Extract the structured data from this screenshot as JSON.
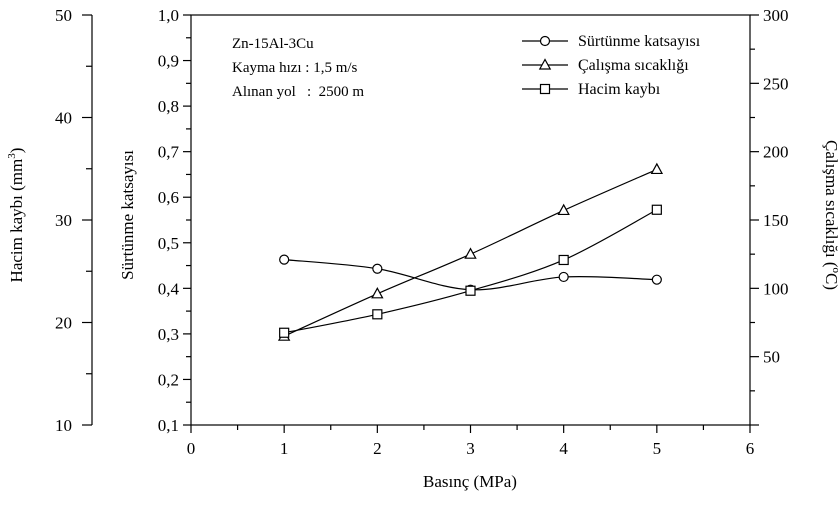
{
  "chart_data": {
    "type": "line",
    "xlabel": "Basınç (MPa)",
    "x_ticks": [
      "0",
      "1",
      "2",
      "3",
      "4",
      "5",
      "6"
    ],
    "xlim": [
      0,
      6
    ],
    "axes": {
      "left_outer": {
        "label_main": "Hacim kaybı (mm",
        "label_sup": "3",
        "label_end": ")",
        "ticks": [
          "10",
          "20",
          "30",
          "40",
          "50"
        ],
        "ylim": [
          10,
          50
        ]
      },
      "left_inner": {
        "label": "Sürtünme katsayısı",
        "ticks": [
          "0,1",
          "0,2",
          "0,3",
          "0,4",
          "0,5",
          "0,6",
          "0,7",
          "0,8",
          "0,9",
          "1,0"
        ],
        "ylim": [
          0.1,
          1.0
        ]
      },
      "right": {
        "label_main": "Çalışma sıcaklığı (",
        "label_sup": "o",
        "label_end": "C)",
        "ticks": [
          "50",
          "100",
          "150",
          "200",
          "250",
          "300"
        ],
        "ylim": [
          0,
          300
        ]
      }
    },
    "annotation": {
      "line1": "Zn-15Al-3Cu",
      "line2": "Kayma hızı : 1,5 m/s",
      "line3": "Alınan yol   :  2500 m"
    },
    "legend": {
      "placement": "top-right"
    },
    "series": [
      {
        "name": "Sürtünme katsayısı",
        "axis": "left_inner",
        "marker": "circle",
        "x": [
          1,
          2,
          3,
          4,
          5
        ],
        "y": [
          0.463,
          0.443,
          0.397,
          0.425,
          0.419
        ]
      },
      {
        "name": "Çalışma sıcaklığı",
        "axis": "right",
        "marker": "triangle",
        "x": [
          1,
          2,
          3,
          4,
          5
        ],
        "y": [
          65,
          96,
          125,
          157,
          187
        ]
      },
      {
        "name": "Hacim kaybı",
        "axis": "left_outer",
        "marker": "square",
        "x": [
          1,
          2,
          3,
          4,
          5
        ],
        "y": [
          19.0,
          20.8,
          23.1,
          26.1,
          31.0
        ]
      }
    ]
  }
}
